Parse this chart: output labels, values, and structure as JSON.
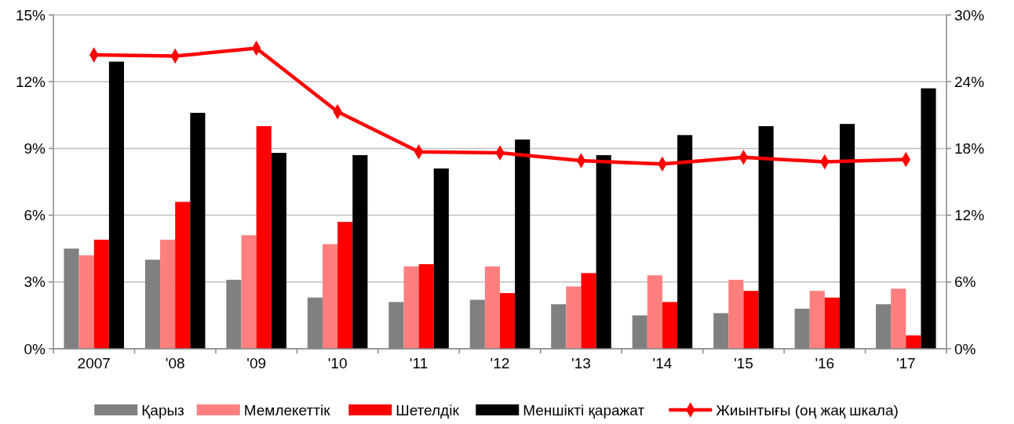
{
  "chart_data": {
    "type": "bar",
    "categories": [
      "2007",
      "'08",
      "'09",
      "'10",
      "'11",
      "'12",
      "'13",
      "'14",
      "'15",
      "'16",
      "'17"
    ],
    "series": [
      {
        "name": "Қарыз",
        "color": "#808080",
        "values": [
          4.5,
          4.0,
          3.1,
          2.3,
          2.1,
          2.2,
          2.0,
          1.5,
          1.6,
          1.8,
          2.0
        ]
      },
      {
        "name": "Мемлекеттік",
        "color": "#ff7f7f",
        "values": [
          4.2,
          4.9,
          5.1,
          4.7,
          3.7,
          3.7,
          2.8,
          3.3,
          3.1,
          2.6,
          2.7
        ]
      },
      {
        "name": "Шетелдік",
        "color": "#ff0000",
        "values": [
          4.9,
          6.6,
          10.0,
          5.7,
          3.8,
          2.5,
          3.4,
          2.1,
          2.6,
          2.3,
          0.6
        ]
      },
      {
        "name": "Меншікті қаражат",
        "color": "#000000",
        "values": [
          12.9,
          10.6,
          8.8,
          8.7,
          8.1,
          9.4,
          8.7,
          9.6,
          10.0,
          10.1,
          11.7
        ]
      },
      {
        "name": "Жиынтығы (оң жақ шкала)",
        "color": "#ff0000",
        "type": "line",
        "axis": "y2",
        "marker": "diamond",
        "values": [
          26.4,
          26.3,
          27.0,
          21.3,
          17.7,
          17.6,
          16.9,
          16.6,
          17.2,
          16.8,
          17.0
        ]
      }
    ],
    "ylim": [
      0,
      15
    ],
    "yticks": [
      {
        "value": 0,
        "label": "0%"
      },
      {
        "value": 3,
        "label": "3%"
      },
      {
        "value": 6,
        "label": "6%"
      },
      {
        "value": 9,
        "label": "9%"
      },
      {
        "value": 12,
        "label": "12%"
      },
      {
        "value": 15,
        "label": "15%"
      }
    ],
    "y2lim": [
      0,
      30
    ],
    "y2ticks": [
      {
        "value": 0,
        "label": "0%"
      },
      {
        "value": 6,
        "label": "6%"
      },
      {
        "value": 12,
        "label": "12%"
      },
      {
        "value": 18,
        "label": "18%"
      },
      {
        "value": 24,
        "label": "24%"
      },
      {
        "value": 30,
        "label": "30%"
      }
    ],
    "grid": "y",
    "legend": "bottom"
  }
}
